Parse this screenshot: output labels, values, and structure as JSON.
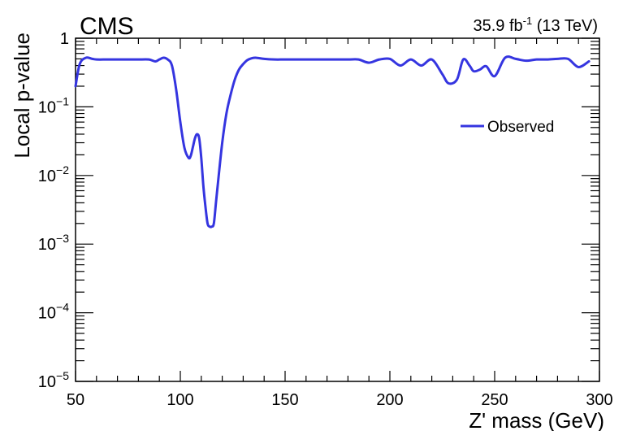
{
  "experiment_label": "CMS",
  "lumi_label_prefix": "35.9 fb",
  "lumi_label_exp": "-1",
  "lumi_label_suffix": " (13 TeV)",
  "chart_data": {
    "type": "line",
    "xlabel": "Z' mass (GeV)",
    "ylabel": "Local p-value",
    "xlim": [
      50,
      300
    ],
    "ylim": [
      1e-05,
      1
    ],
    "yscale": "log",
    "x_ticks": [
      "50",
      "100",
      "150",
      "200",
      "250",
      "300"
    ],
    "y_ticks": [
      {
        "base": "1",
        "exp": ""
      },
      {
        "base": "10",
        "exp": "−1"
      },
      {
        "base": "10",
        "exp": "−2"
      },
      {
        "base": "10",
        "exp": "−3"
      },
      {
        "base": "10",
        "exp": "−4"
      },
      {
        "base": "10",
        "exp": "−5"
      }
    ],
    "legend_position": "top-right",
    "series": [
      {
        "name": "Observed",
        "color": "#3535e0",
        "x": [
          50,
          52,
          55,
          58,
          60,
          65,
          70,
          75,
          80,
          85,
          88,
          90,
          92,
          94,
          96,
          98,
          100,
          102,
          104,
          105,
          106,
          107,
          108,
          109,
          110,
          111,
          112,
          113,
          114,
          115,
          116,
          117,
          118,
          120,
          122,
          124,
          126,
          128,
          130,
          132,
          134,
          136,
          140,
          145,
          150,
          160,
          170,
          180,
          185,
          190,
          195,
          200,
          205,
          210,
          215,
          220,
          225,
          228,
          232,
          235,
          238,
          240,
          243,
          246,
          250,
          255,
          260,
          265,
          270,
          275,
          280,
          285,
          290,
          295
        ],
        "y": [
          0.2,
          0.42,
          0.52,
          0.5,
          0.49,
          0.49,
          0.49,
          0.49,
          0.49,
          0.49,
          0.46,
          0.49,
          0.52,
          0.49,
          0.4,
          0.18,
          0.06,
          0.025,
          0.018,
          0.0195,
          0.026,
          0.035,
          0.04,
          0.035,
          0.018,
          0.007,
          0.0035,
          0.002,
          0.0018,
          0.0018,
          0.002,
          0.004,
          0.008,
          0.03,
          0.08,
          0.15,
          0.25,
          0.35,
          0.42,
          0.48,
          0.51,
          0.52,
          0.5,
          0.49,
          0.49,
          0.49,
          0.49,
          0.49,
          0.49,
          0.44,
          0.49,
          0.5,
          0.4,
          0.49,
          0.4,
          0.49,
          0.3,
          0.22,
          0.25,
          0.49,
          0.4,
          0.33,
          0.35,
          0.39,
          0.28,
          0.52,
          0.5,
          0.47,
          0.49,
          0.49,
          0.5,
          0.5,
          0.38,
          0.46
        ]
      }
    ]
  }
}
